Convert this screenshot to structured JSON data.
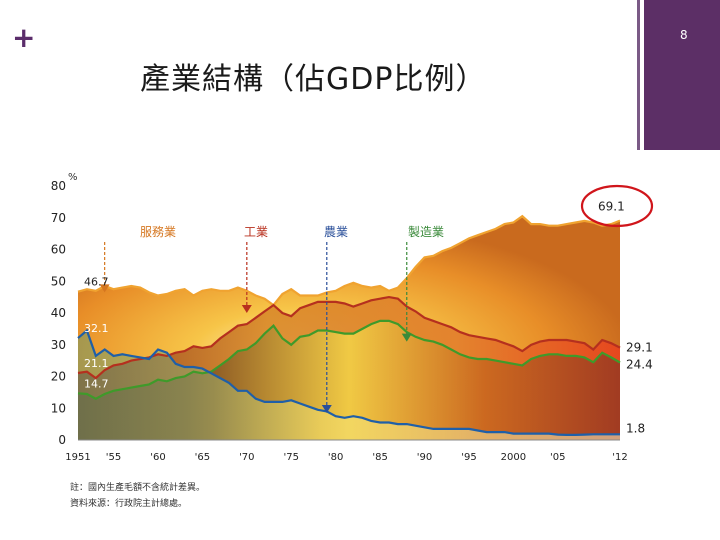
{
  "slide": {
    "plus_symbol": "+",
    "page_number": "8",
    "title": "產業結構（佔GDP比例）",
    "note_1": "註：國內生產毛額不含統計差異。",
    "note_2": "資料來源：行政院主計總處。"
  },
  "colors": {
    "accent_purple": "#5c2f66",
    "services": "#f0a330",
    "industry": "#b5301e",
    "manufacturing": "#3f9a2a",
    "agriculture": "#1f5fa8",
    "highlight_circle": "#d0151b"
  },
  "chart_data": {
    "type": "area",
    "title": "",
    "ylabel": "%",
    "xlabel": "",
    "ylim": [
      0,
      80
    ],
    "xlim": [
      1951,
      2012
    ],
    "y_ticks": [
      "0",
      "10",
      "20",
      "30",
      "40",
      "50",
      "60",
      "70",
      "80"
    ],
    "y_tick_values": [
      0,
      10,
      20,
      30,
      40,
      50,
      60,
      70,
      80
    ],
    "x_ticks": [
      "1951",
      "'55",
      "'60",
      "'65",
      "'70",
      "'75",
      "'80",
      "'85",
      "'90",
      "'95",
      "2000",
      "'05",
      "'12"
    ],
    "x_tick_values": [
      1951,
      1955,
      1960,
      1965,
      1970,
      1975,
      1980,
      1985,
      1990,
      1995,
      2000,
      2005,
      2012
    ],
    "x": [
      1951,
      1952,
      1953,
      1954,
      1955,
      1956,
      1957,
      1958,
      1959,
      1960,
      1961,
      1962,
      1963,
      1964,
      1965,
      1966,
      1967,
      1968,
      1969,
      1970,
      1971,
      1972,
      1973,
      1974,
      1975,
      1976,
      1977,
      1978,
      1979,
      1980,
      1981,
      1982,
      1983,
      1984,
      1985,
      1986,
      1987,
      1988,
      1989,
      1990,
      1991,
      1992,
      1993,
      1994,
      1995,
      1996,
      1997,
      1998,
      1999,
      2000,
      2001,
      2002,
      2003,
      2004,
      2005,
      2006,
      2007,
      2008,
      2009,
      2010,
      2011,
      2012
    ],
    "series": [
      {
        "name": "服務業",
        "values": [
          46.7,
          47.5,
          47.0,
          48.5,
          47.5,
          48.0,
          48.5,
          48.0,
          46.5,
          45.5,
          46.0,
          47.0,
          47.5,
          45.5,
          47.0,
          47.5,
          47.0,
          47.0,
          48.0,
          47.0,
          45.5,
          44.5,
          42.5,
          46.0,
          47.5,
          45.5,
          45.5,
          45.5,
          46.5,
          47.0,
          48.5,
          49.5,
          48.5,
          48.0,
          48.5,
          47.0,
          48.0,
          51.0,
          54.5,
          57.5,
          58.0,
          59.5,
          60.5,
          62.0,
          63.5,
          64.5,
          65.5,
          66.5,
          68.0,
          68.5,
          70.5,
          68.0,
          68.0,
          67.5,
          67.5,
          68.0,
          68.5,
          69.0,
          68.5,
          67.5,
          68.0,
          69.1
        ]
      },
      {
        "name": "工業",
        "values": [
          21.1,
          21.5,
          19.5,
          22.0,
          23.5,
          24.0,
          25.0,
          25.5,
          26.0,
          27.0,
          26.5,
          27.5,
          28.0,
          29.5,
          29.0,
          29.5,
          32.0,
          34.0,
          36.0,
          36.5,
          38.5,
          40.5,
          42.5,
          40.0,
          39.0,
          41.5,
          42.5,
          43.5,
          43.5,
          43.5,
          43.0,
          42.0,
          43.0,
          44.0,
          44.5,
          45.0,
          44.5,
          42.0,
          40.5,
          38.5,
          37.5,
          36.5,
          35.5,
          34.0,
          33.0,
          32.5,
          32.0,
          31.5,
          30.5,
          29.5,
          28.0,
          30.0,
          31.0,
          31.5,
          31.5,
          31.5,
          31.0,
          30.5,
          28.5,
          31.5,
          30.5,
          29.1
        ]
      },
      {
        "name": "製造業",
        "values": [
          14.7,
          14.5,
          13.0,
          14.5,
          15.5,
          16.0,
          16.5,
          17.0,
          17.5,
          19.0,
          18.5,
          19.5,
          20.0,
          21.5,
          21.0,
          21.5,
          23.5,
          25.5,
          28.0,
          28.5,
          30.5,
          33.5,
          36.0,
          32.0,
          30.0,
          32.5,
          33.0,
          34.5,
          34.5,
          34.0,
          33.5,
          33.5,
          35.0,
          36.5,
          37.5,
          37.5,
          36.5,
          34.0,
          32.5,
          31.5,
          31.0,
          30.0,
          28.5,
          27.0,
          26.0,
          25.5,
          25.5,
          25.0,
          24.5,
          24.0,
          23.5,
          25.5,
          26.5,
          27.0,
          27.0,
          26.5,
          26.5,
          26.0,
          24.5,
          27.5,
          26.0,
          24.4
        ]
      },
      {
        "name": "農業",
        "values": [
          32.1,
          34.5,
          26.5,
          28.5,
          26.5,
          27.0,
          26.5,
          26.0,
          25.5,
          28.5,
          27.5,
          24.0,
          23.0,
          23.0,
          22.5,
          21.0,
          19.5,
          18.0,
          15.5,
          15.5,
          13.0,
          12.0,
          12.0,
          12.0,
          12.5,
          11.5,
          10.5,
          9.5,
          9.0,
          7.5,
          7.0,
          7.5,
          7.0,
          6.0,
          5.5,
          5.5,
          5.0,
          5.0,
          4.5,
          4.0,
          3.5,
          3.5,
          3.5,
          3.5,
          3.5,
          3.0,
          2.5,
          2.5,
          2.5,
          2.0,
          2.0,
          2.0,
          2.0,
          2.0,
          1.7,
          1.6,
          1.6,
          1.7,
          1.8,
          1.8,
          1.8,
          1.8
        ]
      }
    ],
    "legend_labels": [
      {
        "series": "服務業",
        "label": "服務業"
      },
      {
        "series": "工業",
        "label": "工業"
      },
      {
        "series": "農業",
        "label": "農業"
      },
      {
        "series": "製造業",
        "label": "製造業"
      }
    ],
    "annotations_start": [
      {
        "label": "46.7",
        "series": "服務業",
        "x": 1951,
        "y": 46.7
      },
      {
        "label": "32.1",
        "series": "農業",
        "x": 1951,
        "y": 32.1
      },
      {
        "label": "21.1",
        "series": "工業",
        "x": 1951,
        "y": 21.1
      },
      {
        "label": "14.7",
        "series": "製造業",
        "x": 1951,
        "y": 14.7
      }
    ],
    "annotations_end": [
      {
        "label": "69.1",
        "series": "服務業",
        "x": 2012,
        "y": 69.1
      },
      {
        "label": "29.1",
        "series": "工業",
        "x": 2012,
        "y": 29.1
      },
      {
        "label": "24.4",
        "series": "製造業",
        "x": 2012,
        "y": 24.4
      },
      {
        "label": "1.8",
        "series": "農業",
        "x": 2012,
        "y": 1.8
      }
    ],
    "highlight": {
      "label": "69.1",
      "shape": "circle"
    }
  }
}
